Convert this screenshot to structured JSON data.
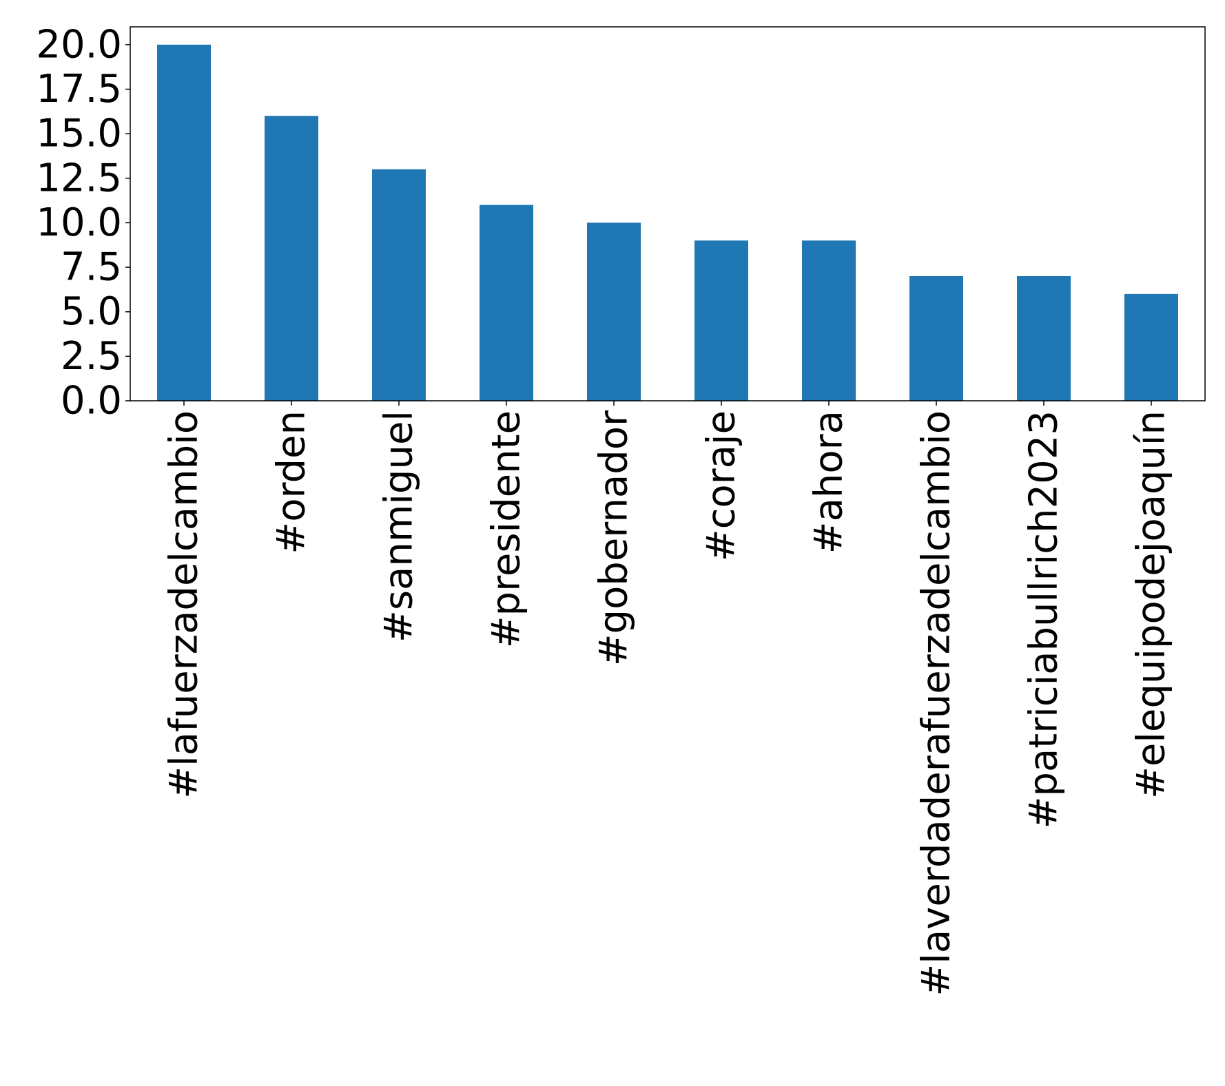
{
  "chart_data": {
    "type": "bar",
    "title": "",
    "xlabel": "",
    "ylabel": "",
    "categories": [
      "#lafuerzadelcambio",
      "#orden",
      "#sanmiguel",
      "#presidente",
      "#gobernador",
      "#coraje",
      "#ahora",
      "#laverdaderafuerzadelcambio",
      "#patriciabullrich2023",
      "#elequipodejoaquín"
    ],
    "values": [
      20,
      16,
      13,
      11,
      10,
      9,
      9,
      7,
      7,
      6
    ],
    "ylim": [
      0,
      21
    ],
    "yticks": [
      "0.0",
      "2.5",
      "5.0",
      "7.5",
      "10.0",
      "12.5",
      "15.0",
      "17.5",
      "20.0"
    ],
    "bar_color": "#1f77b4",
    "grid": false,
    "legend": "none"
  }
}
